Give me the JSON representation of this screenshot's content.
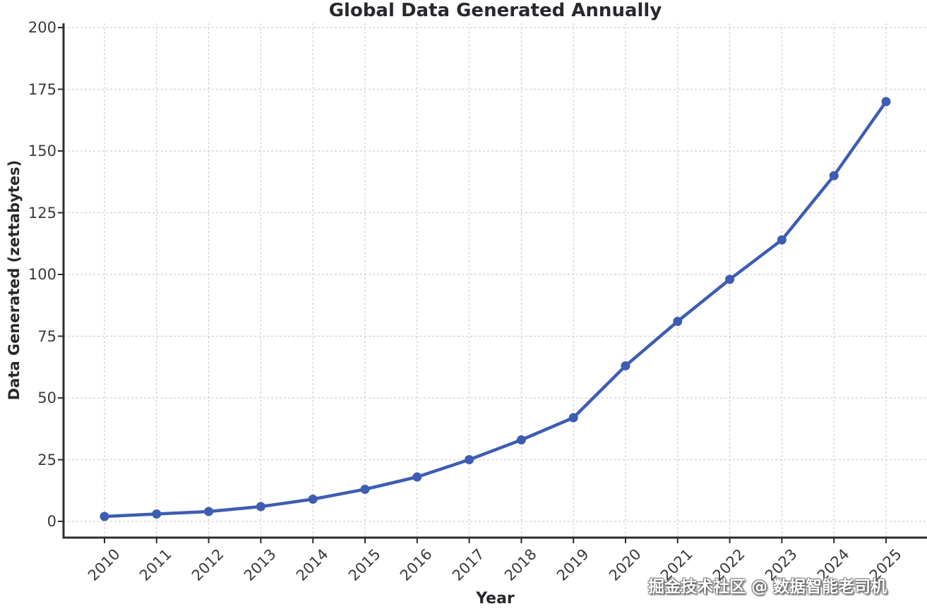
{
  "title": "Global Data Generated Annually",
  "watermark": "掘金技术社区 @ 数据智能老司机",
  "chart_data": {
    "type": "line",
    "title": "Global Data Generated Annually",
    "xlabel": "Year",
    "ylabel": "Data Generated (zettabytes)",
    "categories": [
      "2010",
      "2011",
      "2012",
      "2013",
      "2014",
      "2015",
      "2016",
      "2017",
      "2018",
      "2019",
      "2020",
      "2021",
      "2022",
      "2023",
      "2024",
      "2025"
    ],
    "series": [
      {
        "name": "Data Generated (zettabytes)",
        "values": [
          2,
          3,
          4,
          6,
          9,
          13,
          18,
          25,
          33,
          42,
          63,
          81,
          98,
          114,
          140,
          170
        ]
      }
    ],
    "ylim": [
      0,
      200
    ],
    "yticks": [
      0,
      25,
      50,
      75,
      100,
      125,
      150,
      175,
      200
    ],
    "grid": true,
    "grid_style": "dashed",
    "legend": "none",
    "line_color": "#3d5db3",
    "marker": "circle",
    "grid_color": "#cfcfcf",
    "axis_color": "#2c2c2c",
    "tick_label_color": "#3a3a3a",
    "text_color": "#28282d"
  }
}
